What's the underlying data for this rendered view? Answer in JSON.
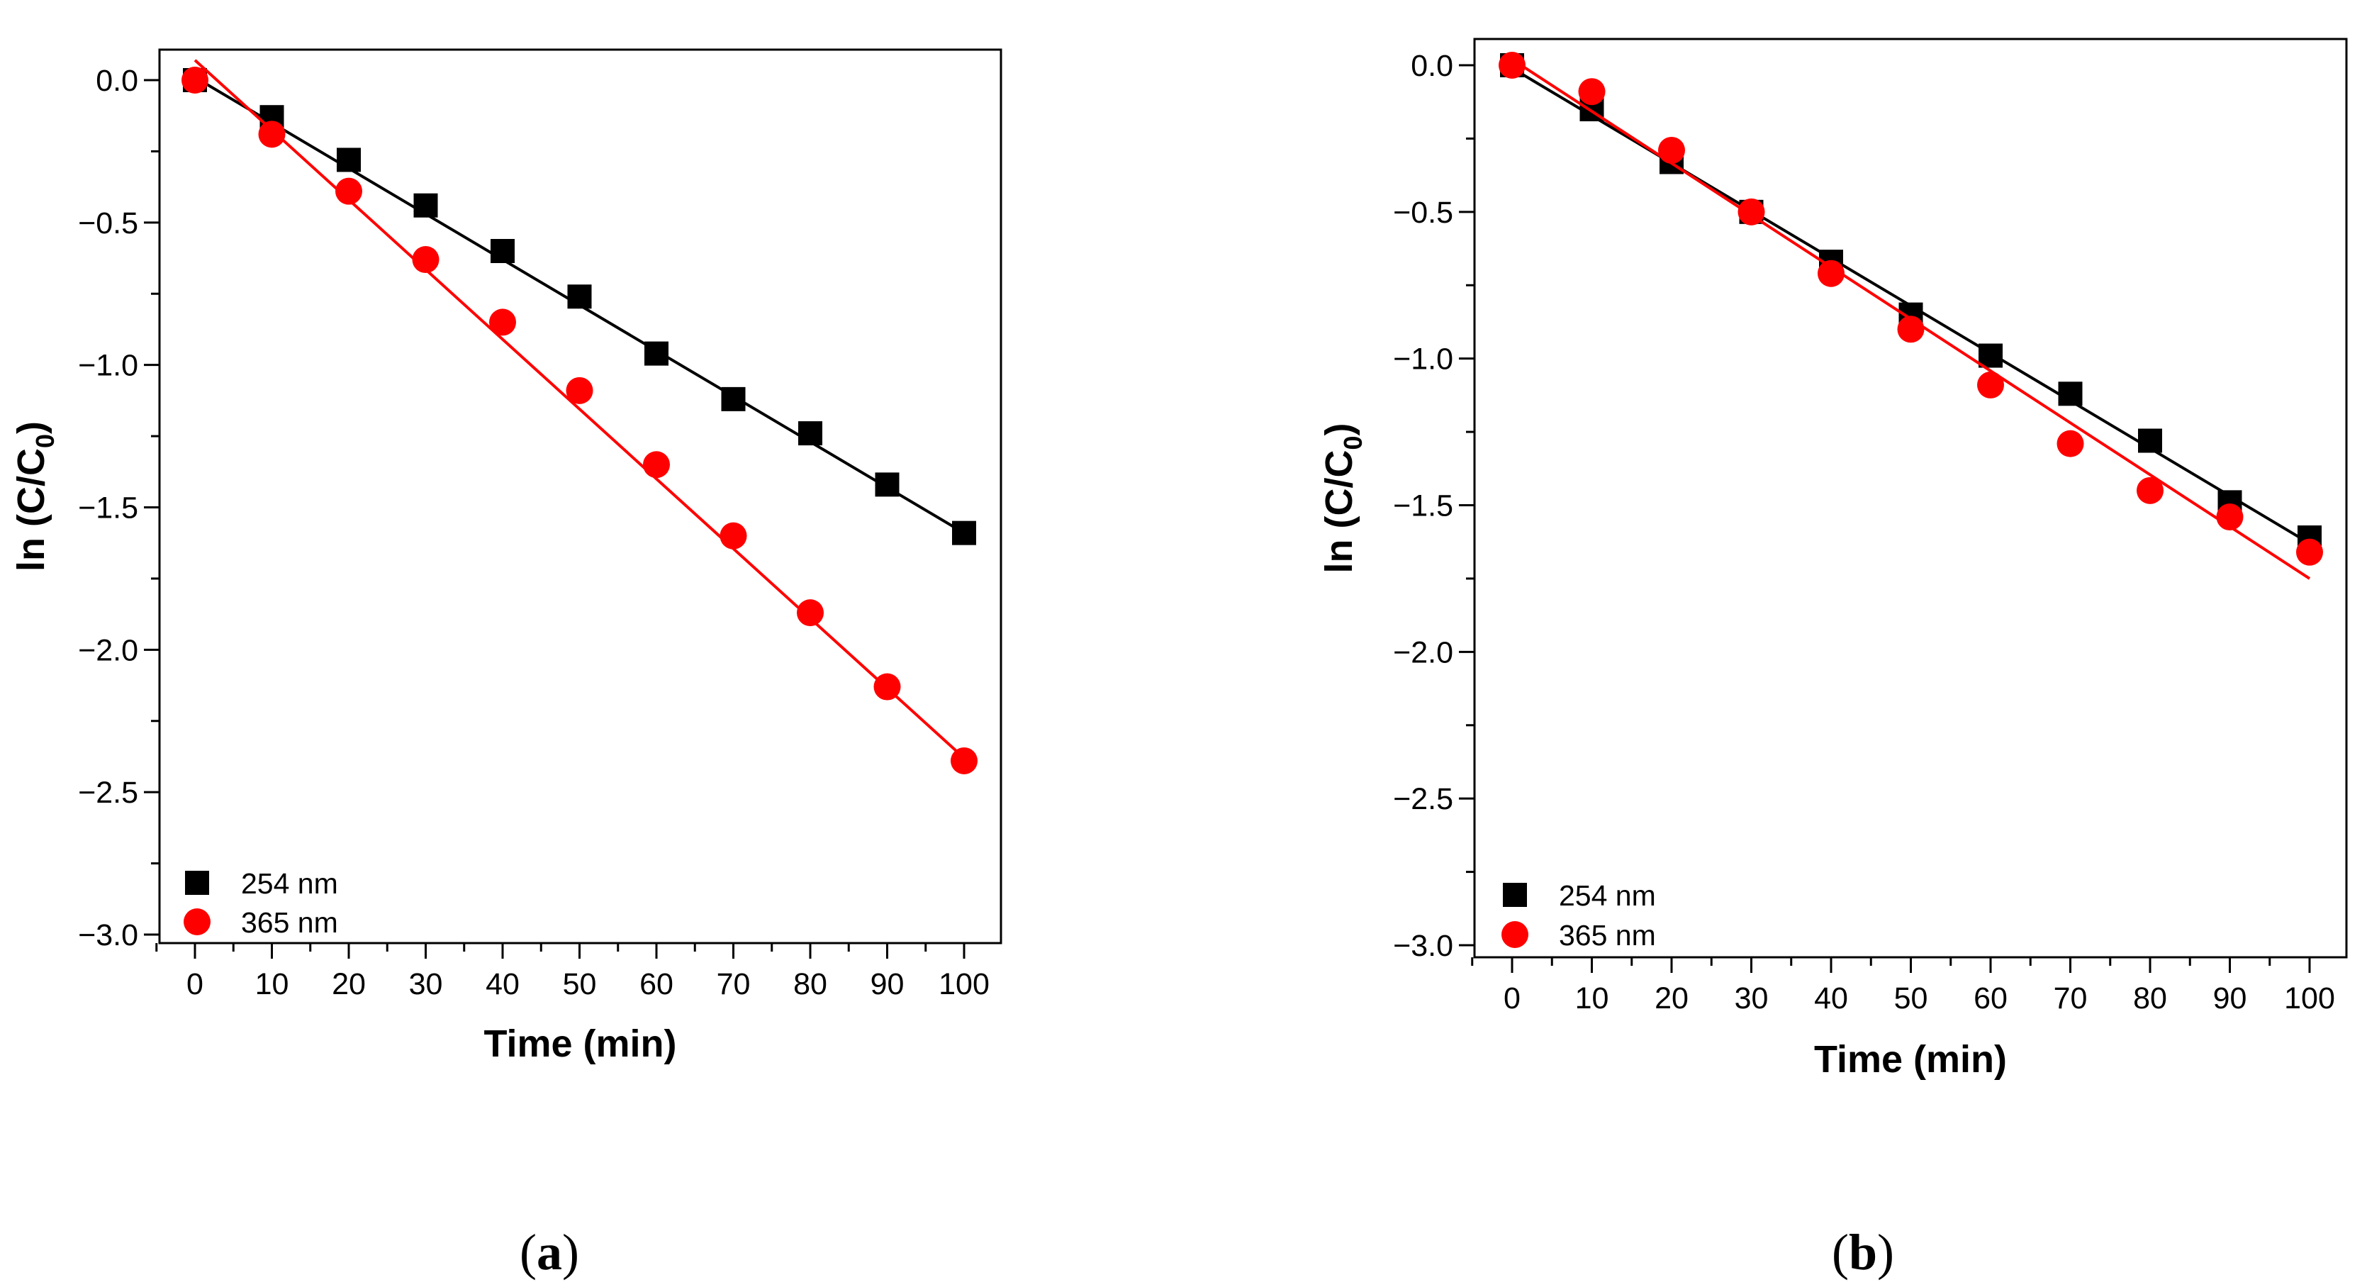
{
  "chart_data": [
    {
      "type": "scatter",
      "panel": "a",
      "caption_open": "(",
      "caption_letter": "a",
      "caption_close": ")",
      "xlabel": "Time (min)",
      "ylabel_main": "ln (C/C",
      "ylabel_sub": "0",
      "ylabel_close": ")",
      "xlim": [
        -5,
        105
      ],
      "ylim": [
        -3.0,
        0.1
      ],
      "xticks": [
        0,
        10,
        20,
        30,
        40,
        50,
        60,
        70,
        80,
        90,
        100
      ],
      "yticks": [
        0.0,
        -0.5,
        -1.0,
        -1.5,
        -2.0,
        -2.5,
        -3.0
      ],
      "xtick_labels": [
        "0",
        "10",
        "20",
        "30",
        "40",
        "50",
        "60",
        "70",
        "80",
        "90",
        "100"
      ],
      "ytick_labels": [
        "0.0",
        "−0.5",
        "−1.0",
        "−1.5",
        "−2.0",
        "−2.5",
        "−3.0"
      ],
      "legend_position": "bottom-left",
      "series": [
        {
          "name": "254 nm",
          "marker": "square",
          "color": "#000000",
          "x": [
            0,
            10,
            20,
            30,
            40,
            50,
            60,
            70,
            80,
            90,
            100
          ],
          "y": [
            0.0,
            -0.13,
            -0.28,
            -0.44,
            -0.6,
            -0.76,
            -0.96,
            -1.12,
            -1.24,
            -1.42,
            -1.59
          ],
          "fit": [
            [
              0,
              0.01
            ],
            [
              100,
              -1.59
            ]
          ]
        },
        {
          "name": "365 nm",
          "marker": "circle",
          "color": "#ff0000",
          "x": [
            0,
            10,
            20,
            30,
            40,
            50,
            60,
            70,
            80,
            90,
            100
          ],
          "y": [
            0.0,
            -0.19,
            -0.39,
            -0.63,
            -0.85,
            -1.09,
            -1.35,
            -1.6,
            -1.87,
            -2.13,
            -2.39
          ],
          "fit": [
            [
              0,
              0.07
            ],
            [
              100,
              -2.38
            ]
          ]
        }
      ]
    },
    {
      "type": "scatter",
      "panel": "b",
      "caption_open": "(",
      "caption_letter": "b",
      "caption_close": ")",
      "xlabel": "Time (min)",
      "ylabel_main": "ln (C/C",
      "ylabel_sub": "0",
      "ylabel_close": ")",
      "xlim": [
        -5,
        105
      ],
      "ylim": [
        -3.0,
        0.1
      ],
      "xticks": [
        0,
        10,
        20,
        30,
        40,
        50,
        60,
        70,
        80,
        90,
        100
      ],
      "yticks": [
        0.0,
        -0.5,
        -1.0,
        -1.5,
        -2.0,
        -2.5,
        -3.0
      ],
      "xtick_labels": [
        "0",
        "10",
        "20",
        "30",
        "40",
        "50",
        "60",
        "70",
        "80",
        "90",
        "100"
      ],
      "ytick_labels": [
        "0.0",
        "−0.5",
        "−1.0",
        "−1.5",
        "−2.0",
        "−2.5",
        "−3.0"
      ],
      "legend_position": "bottom-left",
      "series": [
        {
          "name": "254 nm",
          "marker": "square",
          "color": "#000000",
          "x": [
            0,
            10,
            20,
            30,
            40,
            50,
            60,
            70,
            80,
            90,
            100
          ],
          "y": [
            0.0,
            -0.15,
            -0.33,
            -0.5,
            -0.67,
            -0.85,
            -0.99,
            -1.12,
            -1.28,
            -1.49,
            -1.61
          ],
          "fit": [
            [
              0,
              -0.01
            ],
            [
              100,
              -1.63
            ]
          ]
        },
        {
          "name": "365 nm",
          "marker": "circle",
          "color": "#ff0000",
          "x": [
            0,
            10,
            20,
            30,
            40,
            50,
            60,
            70,
            80,
            90,
            100
          ],
          "y": [
            0.0,
            -0.09,
            -0.29,
            -0.5,
            -0.71,
            -0.9,
            -1.09,
            -1.29,
            -1.45,
            -1.54,
            -1.66
          ],
          "fit": [
            [
              0,
              0.02
            ],
            [
              100,
              -1.75
            ]
          ]
        }
      ]
    }
  ]
}
